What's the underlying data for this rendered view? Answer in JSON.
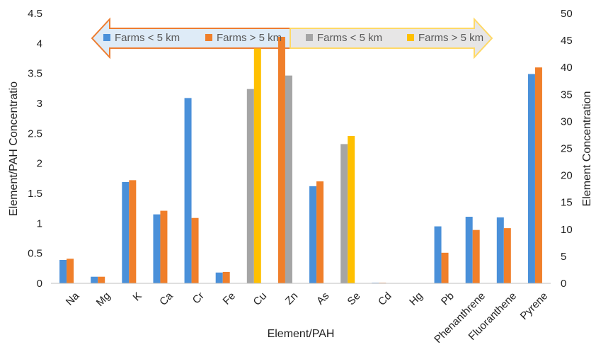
{
  "chart_data": {
    "type": "bar",
    "xlabel": "Element/PAH",
    "ylabel_left": "Element/PAH Concentratio",
    "ylabel_right": "Element Concentration",
    "ylim_left": [
      0,
      4.5
    ],
    "ylim_right": [
      0,
      50
    ],
    "y_ticks_left": [
      "0",
      "0.5",
      "1",
      "1.5",
      "2",
      "2.5",
      "3",
      "3.5",
      "4",
      "4.5"
    ],
    "y_ticks_right": [
      "0",
      "5",
      "10",
      "15",
      "20",
      "25",
      "30",
      "35",
      "40",
      "45",
      "50"
    ],
    "grid": false,
    "categories": [
      "Na",
      "Mg",
      "K",
      "Ca",
      "Cr",
      "Fe",
      "Cu",
      "Zn",
      "As",
      "Se",
      "Cd",
      "Hg",
      "Pb",
      "Phenanthrene",
      "Fluoranthene",
      "Pyrene"
    ],
    "series": [
      {
        "name": "Farms < 5 km",
        "axis": "left",
        "color": "#4a90d9",
        "values": [
          0.39,
          0.11,
          1.69,
          1.15,
          3.09,
          0.18,
          null,
          null,
          1.62,
          null,
          0.01,
          0,
          0.95,
          1.11,
          1.1,
          3.49
        ]
      },
      {
        "name": "Farms > 5 km",
        "axis": "left",
        "color": "#f07f2a",
        "values": [
          0.41,
          0.11,
          1.72,
          1.21,
          1.09,
          0.19,
          null,
          4.11,
          1.7,
          null,
          0.01,
          0,
          0.51,
          0.89,
          0.92,
          3.6
        ]
      },
      {
        "name": "Farms < 5 km",
        "axis": "right",
        "color": "#a5a5a5",
        "values": [
          null,
          null,
          null,
          null,
          null,
          null,
          36.0,
          38.5,
          null,
          25.8,
          null,
          null,
          null,
          null,
          null,
          null
        ]
      },
      {
        "name": "Farms > 5 km",
        "axis": "right",
        "color": "#ffc000",
        "values": [
          null,
          null,
          null,
          null,
          null,
          null,
          43.5,
          null,
          null,
          27.3,
          null,
          null,
          null,
          null,
          null,
          null
        ]
      }
    ],
    "legend": {
      "placement": "top",
      "left_group": {
        "arrow_fill": "#deebf7",
        "arrow_stroke": "#ed7d31",
        "items": [
          {
            "label": "Farms < 5 km",
            "color": "#4a90d9"
          },
          {
            "label": "Farms > 5 km",
            "color": "#f07f2a"
          }
        ]
      },
      "right_group": {
        "arrow_fill": "#e7e6e6",
        "arrow_stroke": "#ffd966",
        "items": [
          {
            "label": "Farms < 5 km",
            "color": "#a5a5a5"
          },
          {
            "label": "Farms > 5 km",
            "color": "#ffc000"
          }
        ]
      }
    }
  }
}
